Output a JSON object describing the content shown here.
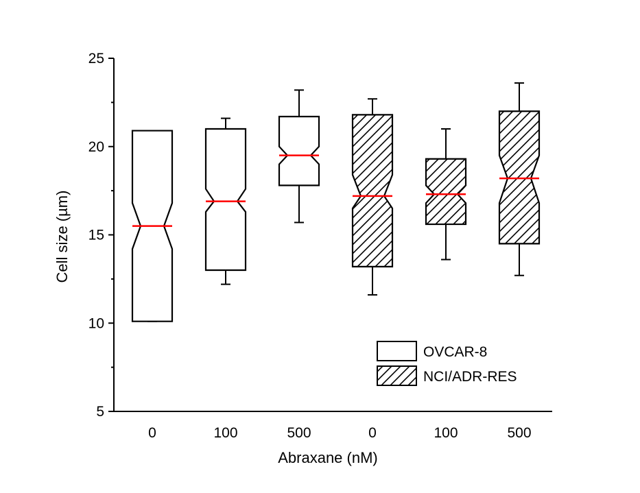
{
  "chart_data": {
    "type": "box",
    "notched": true,
    "xlabel": "Abraxane (nM)",
    "ylabel": "Cell size (µm)",
    "ylim": [
      5,
      25
    ],
    "yticks": [
      5,
      10,
      15,
      20,
      25
    ],
    "median_color": "#ff0000",
    "legend": {
      "position": "bottom-right",
      "entries": [
        {
          "label": "OVCAR-8",
          "pattern": "none"
        },
        {
          "label": "NCI/ADR-RES",
          "pattern": "hatch"
        }
      ]
    },
    "boxes": [
      {
        "category": "0",
        "series": "OVCAR-8",
        "whisker_low": 10.1,
        "q1": 10.1,
        "median": 15.5,
        "q3": 20.9,
        "whisker_high": 20.9,
        "notch_low": 14.2,
        "notch_high": 16.8
      },
      {
        "category": "100",
        "series": "OVCAR-8",
        "whisker_low": 12.2,
        "q1": 13.0,
        "median": 16.9,
        "q3": 21.0,
        "whisker_high": 21.6,
        "notch_low": 16.3,
        "notch_high": 17.6
      },
      {
        "category": "500",
        "series": "OVCAR-8",
        "whisker_low": 15.7,
        "q1": 17.8,
        "median": 19.5,
        "q3": 21.7,
        "whisker_high": 23.2,
        "notch_low": 19.0,
        "notch_high": 20.0
      },
      {
        "category": "0",
        "series": "NCI/ADR-RES",
        "whisker_low": 11.6,
        "q1": 13.2,
        "median": 17.2,
        "q3": 21.8,
        "whisker_high": 22.7,
        "notch_low": 16.5,
        "notch_high": 18.4
      },
      {
        "category": "100",
        "series": "NCI/ADR-RES",
        "whisker_low": 13.6,
        "q1": 15.6,
        "median": 17.3,
        "q3": 19.3,
        "whisker_high": 21.0,
        "notch_low": 16.8,
        "notch_high": 17.8
      },
      {
        "category": "500",
        "series": "NCI/ADR-RES",
        "whisker_low": 12.7,
        "q1": 14.5,
        "median": 18.2,
        "q3": 22.0,
        "whisker_high": 23.6,
        "notch_low": 16.8,
        "notch_high": 19.5
      }
    ]
  }
}
